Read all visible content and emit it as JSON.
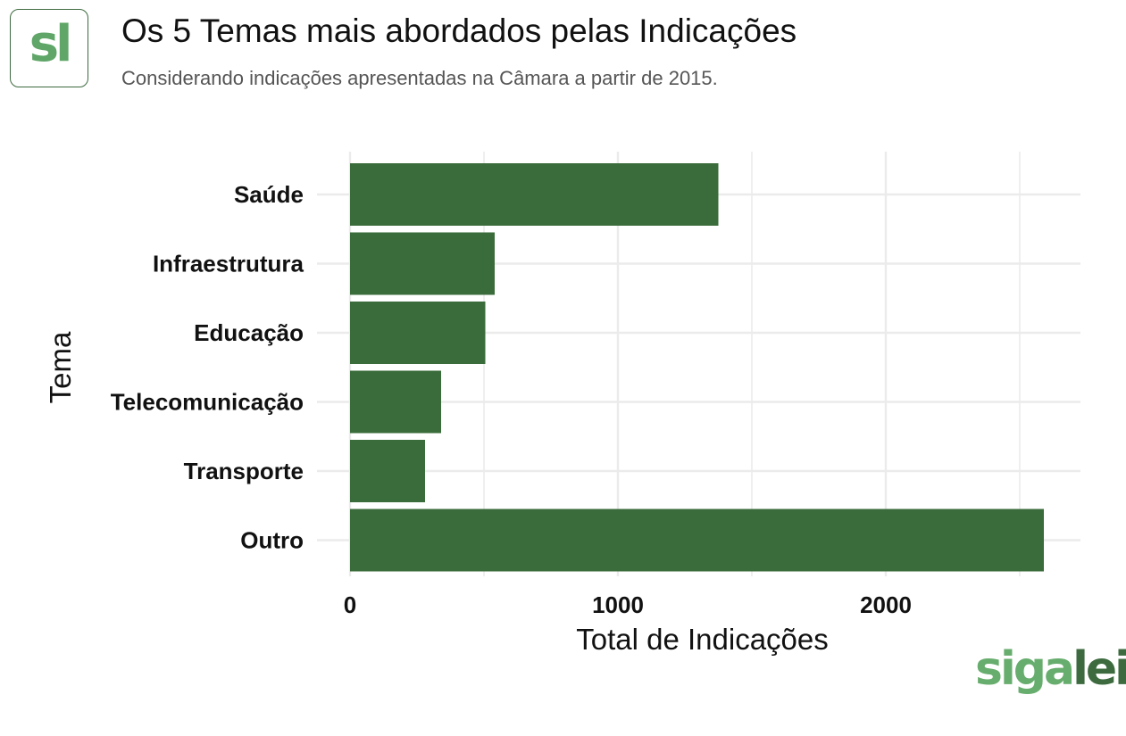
{
  "header": {
    "logo_text": "sl",
    "title": "Os 5 Temas mais abordados pelas Indicações",
    "subtitle": "Considerando indicações apresentadas na Câmara a partir de 2015."
  },
  "brand": {
    "part1": "siga",
    "part2": "lei"
  },
  "colors": {
    "bar": "#3a6b3a",
    "grid": "#ebebeb",
    "logo_green": "#5fa668",
    "logo_border": "#3d6b3f"
  },
  "chart_data": {
    "type": "bar",
    "orientation": "horizontal",
    "categories": [
      "Saúde",
      "Infraestrutura",
      "Educação",
      "Telecomunicação",
      "Transporte",
      "Outro"
    ],
    "values": [
      1375,
      540,
      505,
      340,
      280,
      2590
    ],
    "xlabel": "Total de Indicações",
    "ylabel": "Tema",
    "xlim": [
      0,
      2700
    ],
    "xticks": [
      0,
      1000,
      2000
    ],
    "grid": true,
    "legend": "none"
  }
}
